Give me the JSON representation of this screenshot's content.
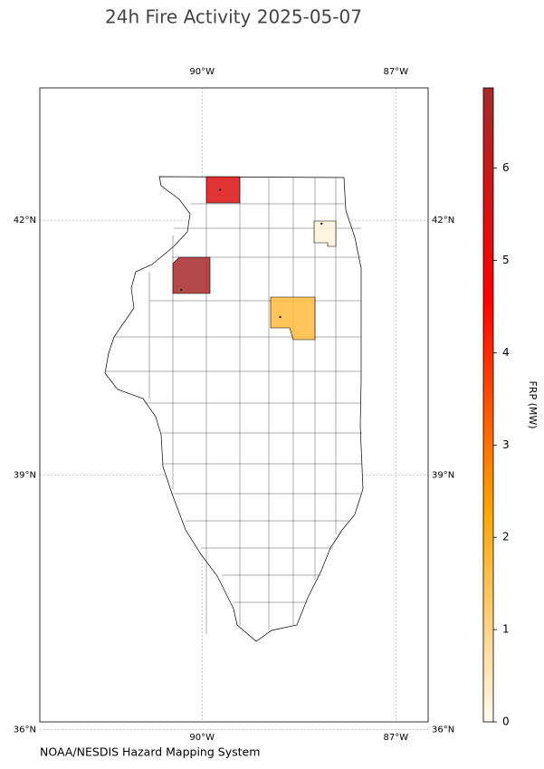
{
  "map": {
    "title": "24h Fire Activity 2025-05-07",
    "xlim": [
      -92.51,
      -86.5
    ],
    "ylim": [
      36.09,
      43.56
    ],
    "xticks": [
      {
        "value": -90,
        "label": "90°W"
      },
      {
        "value": -87,
        "label": "87°W"
      }
    ],
    "yticks": [
      {
        "value": 42,
        "label": "42°N"
      },
      {
        "value": 39,
        "label": "39°N"
      },
      {
        "value": 36,
        "label": "36°N"
      }
    ],
    "fires": [
      {
        "lon": -89.72,
        "lat": 42.36,
        "frp": 5.5
      },
      {
        "lon": -90.32,
        "lat": 41.18,
        "frp": 6.8
      },
      {
        "lon": -88.79,
        "lat": 40.86,
        "frp": 1.7
      },
      {
        "lon": -88.15,
        "lat": 41.96,
        "frp": 0.2
      }
    ],
    "colorbar": {
      "label": "FRP (MW)",
      "clim": [
        0,
        6.87
      ],
      "ticks": [
        0,
        1,
        2,
        3,
        4,
        5,
        6
      ],
      "colors": [
        "#fffaf0",
        "#ffa500",
        "#ff0000",
        "#a52a2a"
      ]
    }
  },
  "footer": "NOAA/NESDIS Hazard Mapping System"
}
